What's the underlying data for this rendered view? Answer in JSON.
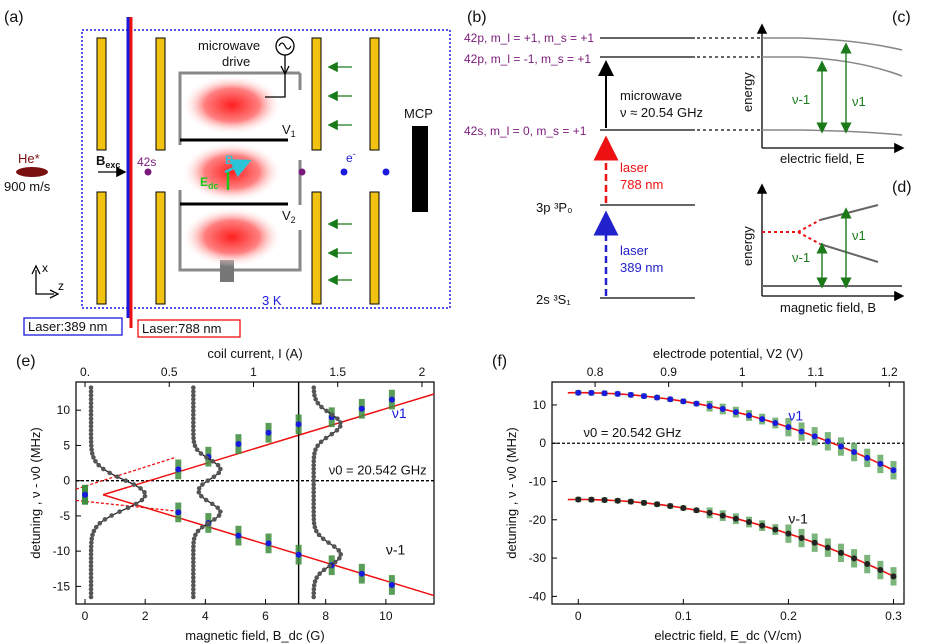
{
  "panels": {
    "a": {
      "label": "(a)",
      "microwave_label_1": "microwave",
      "microwave_label_2": "drive",
      "v1": "V",
      "v1_sub": "1",
      "v2": "V",
      "v2_sub": "2",
      "bdc": "B",
      "bdc_sub": "dc",
      "edc": "E",
      "edc_sub": "dc",
      "bexc": "B",
      "bexc_sub": "exc",
      "state": "42s",
      "electron": "e",
      "electron_sup": "-",
      "mcp": "MCP",
      "beam": "He*",
      "speed": "900 m/s",
      "temp": "3 K",
      "laser_a": "Laser:389 nm",
      "laser_b": "Laser:788 nm",
      "axis_x": "x",
      "axis_z": "z"
    },
    "b": {
      "label": "(b)",
      "level_top1": "42p, m_l = +1, m_s = +1",
      "level_top2": "42p, m_l = -1, m_s = +1",
      "level_42s": "42s, m_l = 0, m_s = +1",
      "level_3p": "3p ³P₀",
      "level_2s": "2s ³S₁",
      "mw_1": "microwave",
      "mw_2": "ν ≈ 20.54 GHz",
      "laser_red_1": "laser",
      "laser_red_2": "788 nm",
      "laser_blue_1": "laser",
      "laser_blue_2": "389 nm"
    },
    "c": {
      "label": "(c)",
      "ylabel": "energy",
      "xlabel": "electric field, E",
      "nu_m1": "ν-1",
      "nu_1": "ν1"
    },
    "d": {
      "label": "(d)",
      "ylabel": "energy",
      "xlabel": "magnetic field, B",
      "nu_m1": "ν-1",
      "nu_1": "ν1"
    }
  },
  "chart_data": [
    {
      "id": "e",
      "type": "scatter",
      "panel_label": "(e)",
      "title_top": "coil current, I (A)",
      "xlabel": "magnetic field, B_dc (G)",
      "ylabel": "detuning , ν - ν0 (MHz)",
      "xlim": [
        -0.3,
        11.6
      ],
      "ylim": [
        -17.5,
        14
      ],
      "x_ticks": [
        0,
        2,
        4,
        6,
        8,
        10
      ],
      "y_ticks": [
        10,
        5,
        0,
        -5,
        -10,
        -15
      ],
      "top_ticks": [
        {
          "label": "0.",
          "B": 0
        },
        {
          "label": "0.5",
          "B": 2.8
        },
        {
          "label": "1",
          "B": 5.6
        },
        {
          "label": "1.5",
          "B": 8.4
        },
        {
          "label": "2",
          "B": 11.2
        }
      ],
      "annotation_ref": "ν0 = 20.542 GHz",
      "annotation_v1": "ν1",
      "annotation_vm1": "ν-1",
      "vline_B": 7.1,
      "series": [
        {
          "name": "ν1",
          "B": [
            0,
            3.1,
            4.1,
            5.1,
            6.1,
            7.1,
            8.2,
            9.2,
            10.2
          ],
          "values": [
            -2,
            1.6,
            3.4,
            5.2,
            6.8,
            8.0,
            9.0,
            10.2,
            11.5
          ]
        },
        {
          "name": "ν-1",
          "B": [
            0,
            3.1,
            4.1,
            5.1,
            6.1,
            7.1,
            8.2,
            9.2,
            10.2
          ],
          "values": [
            -2,
            -4.5,
            -6.0,
            -7.8,
            -8.9,
            -10.5,
            -12.0,
            -13.2,
            -14.8
          ]
        }
      ]
    },
    {
      "id": "f",
      "type": "scatter",
      "panel_label": "(f)",
      "title_top": "electrode potential, V2 (V)",
      "xlabel": "electric field, E_dc (V/cm)",
      "ylabel": "detuning , ν - ν0 (MHz)",
      "xlim": [
        -0.025,
        0.31
      ],
      "ylim": [
        -42,
        16
      ],
      "x_ticks": [
        0,
        0.1,
        0.2,
        0.3
      ],
      "y_ticks": [
        10,
        0,
        -10,
        -20,
        -30,
        -40
      ],
      "top_ticks": [
        {
          "label": "0.8",
          "E": 0.016
        },
        {
          "label": "0.9",
          "E": 0.086
        },
        {
          "label": "1",
          "E": 0.156
        },
        {
          "label": "1.1",
          "E": 0.226
        },
        {
          "label": "1.2",
          "E": 0.296
        }
      ],
      "annotation_ref": "ν0 = 20.542 GHz",
      "annotation_v1": "ν1",
      "annotation_vm1": "ν-1",
      "series": [
        {
          "name": "ν1",
          "E0": 13.2,
          "a": -225
        },
        {
          "name": "ν-1",
          "E0": -14.7,
          "a": -223
        }
      ]
    }
  ]
}
